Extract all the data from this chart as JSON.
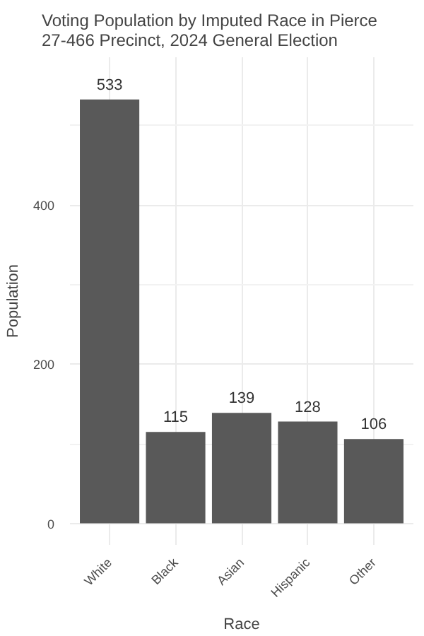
{
  "chart_data": {
    "type": "bar",
    "title": "Voting Population by Imputed Race in Pierce\n27-466 Precinct,  2024 General Election",
    "xlabel": "Race",
    "ylabel": "Population",
    "categories": [
      "White",
      "Black",
      "Asian",
      "Hispanic",
      "Other"
    ],
    "values": [
      533,
      115,
      139,
      128,
      106
    ],
    "color": "#595959",
    "ylim": [
      -27,
      586
    ],
    "yticks": [
      0,
      200,
      400
    ],
    "grid": true,
    "data_labels": true
  }
}
